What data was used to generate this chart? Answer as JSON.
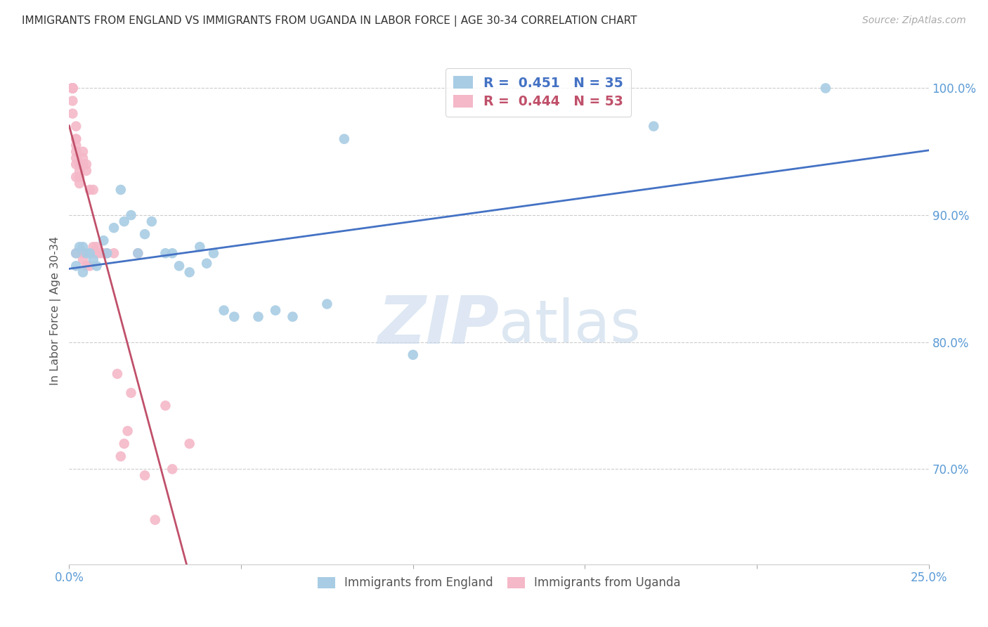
{
  "title": "IMMIGRANTS FROM ENGLAND VS IMMIGRANTS FROM UGANDA IN LABOR FORCE | AGE 30-34 CORRELATION CHART",
  "source": "Source: ZipAtlas.com",
  "ylabel": "In Labor Force | Age 30-34",
  "xlim": [
    0.0,
    0.25
  ],
  "ylim": [
    0.625,
    1.025
  ],
  "yticks": [
    0.7,
    0.8,
    0.9,
    1.0
  ],
  "ytick_labels": [
    "70.0%",
    "80.0%",
    "90.0%",
    "100.0%"
  ],
  "xticks": [
    0.0,
    0.05,
    0.1,
    0.15,
    0.2,
    0.25
  ],
  "xtick_labels": [
    "0.0%",
    "",
    "",
    "",
    "",
    "25.0%"
  ],
  "england_color": "#a8cce4",
  "uganda_color": "#f4b8c8",
  "england_line_color": "#4472c4",
  "uganda_line_color": "#c0506a",
  "england_R": 0.451,
  "england_N": 35,
  "uganda_R": 0.444,
  "uganda_N": 53,
  "england_x": [
    0.002,
    0.002,
    0.003,
    0.004,
    0.004,
    0.005,
    0.006,
    0.007,
    0.008,
    0.01,
    0.011,
    0.013,
    0.015,
    0.016,
    0.018,
    0.02,
    0.022,
    0.024,
    0.028,
    0.03,
    0.032,
    0.035,
    0.038,
    0.04,
    0.042,
    0.045,
    0.048,
    0.055,
    0.06,
    0.065,
    0.075,
    0.08,
    0.1,
    0.17,
    0.22
  ],
  "england_y": [
    0.86,
    0.87,
    0.875,
    0.855,
    0.875,
    0.87,
    0.87,
    0.865,
    0.86,
    0.88,
    0.87,
    0.89,
    0.92,
    0.895,
    0.9,
    0.87,
    0.885,
    0.895,
    0.87,
    0.87,
    0.86,
    0.855,
    0.875,
    0.862,
    0.87,
    0.825,
    0.82,
    0.82,
    0.825,
    0.82,
    0.83,
    0.96,
    0.79,
    0.97,
    1.0
  ],
  "uganda_x": [
    0.001,
    0.001,
    0.001,
    0.001,
    0.001,
    0.001,
    0.001,
    0.001,
    0.001,
    0.001,
    0.001,
    0.002,
    0.002,
    0.002,
    0.002,
    0.002,
    0.002,
    0.002,
    0.002,
    0.002,
    0.003,
    0.003,
    0.003,
    0.003,
    0.004,
    0.004,
    0.004,
    0.004,
    0.004,
    0.005,
    0.005,
    0.005,
    0.006,
    0.006,
    0.007,
    0.007,
    0.008,
    0.008,
    0.009,
    0.01,
    0.011,
    0.013,
    0.014,
    0.015,
    0.016,
    0.017,
    0.018,
    0.02,
    0.022,
    0.025,
    0.028,
    0.03,
    0.035
  ],
  "uganda_y": [
    1.0,
    1.0,
    1.0,
    1.0,
    1.0,
    1.0,
    1.0,
    1.0,
    1.0,
    0.99,
    0.98,
    0.97,
    0.96,
    0.96,
    0.955,
    0.95,
    0.945,
    0.94,
    0.93,
    0.87,
    0.94,
    0.935,
    0.93,
    0.925,
    0.95,
    0.945,
    0.94,
    0.87,
    0.865,
    0.94,
    0.935,
    0.86,
    0.92,
    0.86,
    0.92,
    0.875,
    0.875,
    0.87,
    0.87,
    0.87,
    0.87,
    0.87,
    0.775,
    0.71,
    0.72,
    0.73,
    0.76,
    0.87,
    0.695,
    0.66,
    0.75,
    0.7,
    0.72
  ],
  "background_color": "#ffffff",
  "grid_color": "#cccccc",
  "title_color": "#333333",
  "axis_color": "#5b9bd5",
  "watermark_zip_color": "#c8d8ec",
  "watermark_atlas_color": "#c0d4e8"
}
